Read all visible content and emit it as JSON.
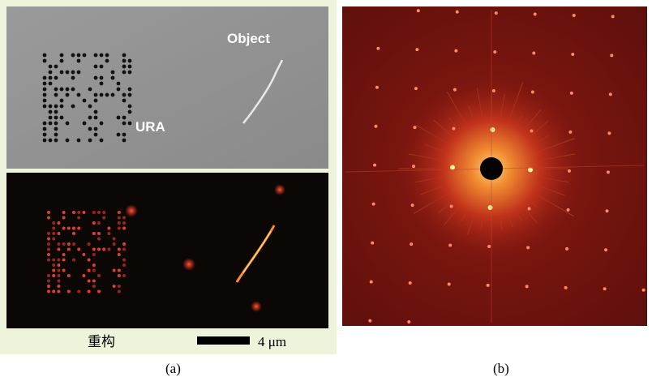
{
  "panel_a": {
    "object_label": "Object",
    "ura_label": "URA",
    "reconstruction_label": "重构",
    "scale_bar_label": "4 μm",
    "caption": "(a)"
  },
  "panel_b": {
    "caption": "(b)"
  }
}
